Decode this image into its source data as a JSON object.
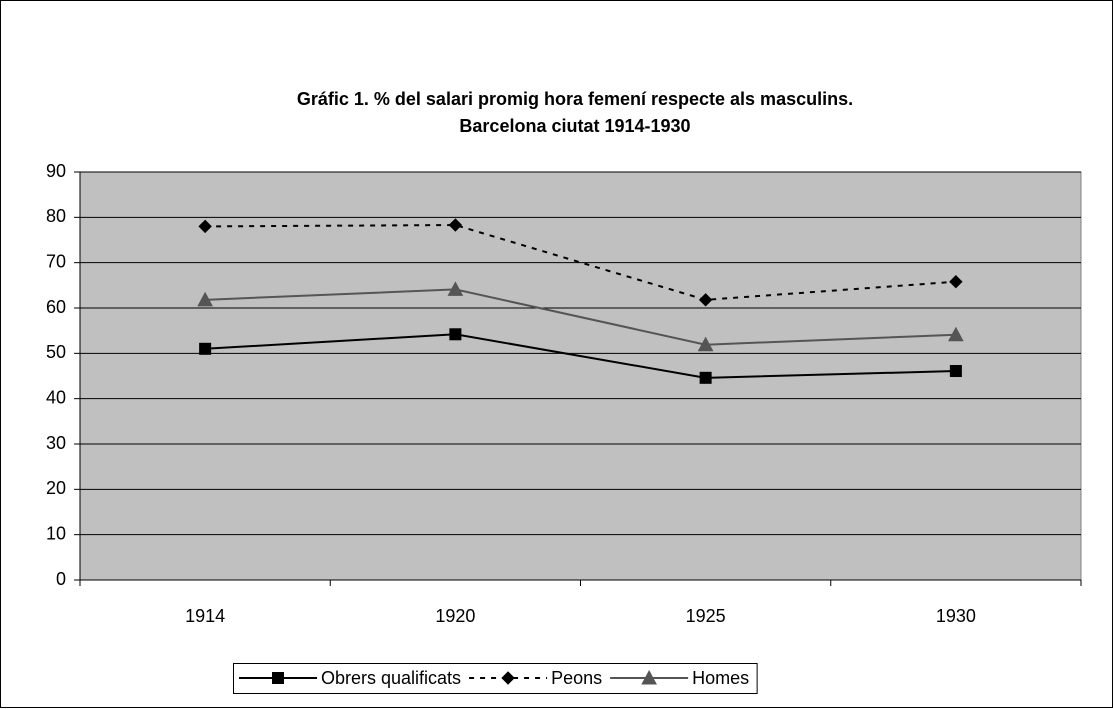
{
  "chart_data": {
    "type": "line",
    "title": [
      "Gráfic 1. % del salari promig hora femení respecte als masculins.",
      "Barcelona ciutat 1914-1930"
    ],
    "categories": [
      "1914",
      "1920",
      "1925",
      "1930"
    ],
    "series": [
      {
        "name": "Obrers qualificats",
        "color": "#000000",
        "dash": false,
        "marker": "square",
        "values": [
          51,
          54.2,
          44.6,
          46.1
        ]
      },
      {
        "name": "Peons",
        "color": "#000000",
        "dash": true,
        "marker": "diamond",
        "values": [
          78,
          78.3,
          61.8,
          65.8
        ]
      },
      {
        "name": "Homes",
        "color": "#555555",
        "dash": false,
        "marker": "triangle",
        "values": [
          61.8,
          64.1,
          51.9,
          54.1
        ]
      }
    ],
    "ylim": [
      0,
      90
    ],
    "yticks": [
      0,
      10,
      20,
      30,
      40,
      50,
      60,
      70,
      80,
      90
    ],
    "grid": true,
    "legend": "bottom",
    "plot_background": "#c0c0c0"
  }
}
